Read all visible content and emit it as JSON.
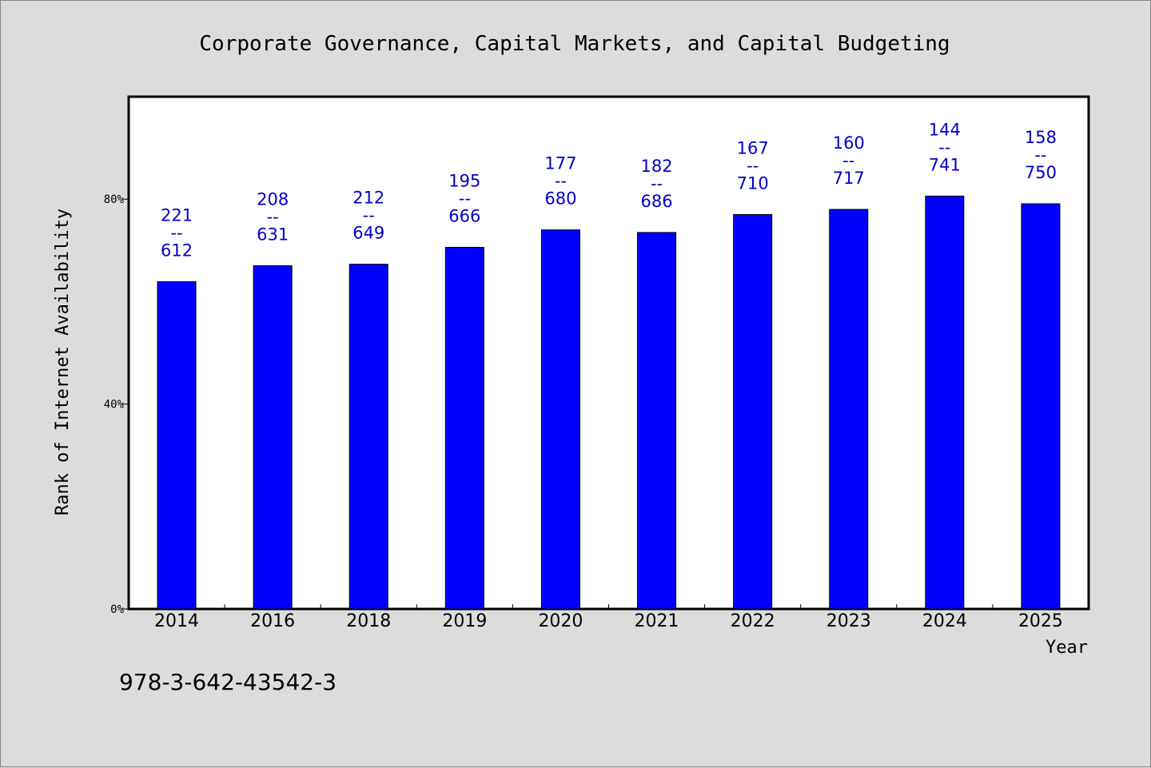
{
  "chart_data": {
    "type": "bar",
    "title": "Corporate Governance, Capital Markets, and Capital Budgeting",
    "xlabel": "Year",
    "ylabel": "Rank of Internet Availability",
    "categories": [
      "2014",
      "2016",
      "2018",
      "2019",
      "2020",
      "2021",
      "2022",
      "2023",
      "2024",
      "2025"
    ],
    "series": [
      {
        "values": [
          63.9,
          67.0,
          67.3,
          70.6,
          74.0,
          73.5,
          77.0,
          78.0,
          80.6,
          79.1
        ],
        "color": "#0000ff"
      }
    ],
    "data_labels": [
      [
        "221",
        "--",
        "612"
      ],
      [
        "208",
        "--",
        "631"
      ],
      [
        "212",
        "--",
        "649"
      ],
      [
        "195",
        "--",
        "666"
      ],
      [
        "177",
        "--",
        "680"
      ],
      [
        "182",
        "--",
        "686"
      ],
      [
        "167",
        "--",
        "710"
      ],
      [
        "160",
        "--",
        "717"
      ],
      [
        "144",
        "--",
        "741"
      ],
      [
        "158",
        "--",
        "750"
      ]
    ],
    "ylim": [
      0,
      100
    ],
    "yticks": [
      0,
      40,
      80
    ],
    "ytick_labels": [
      "0%",
      "40%",
      "80%"
    ],
    "grid": false,
    "legend": "none"
  },
  "footer": {
    "isbn": "978-3-642-43542-3"
  },
  "colors": {
    "background": "#dcdcdc",
    "plot_background": "#ffffff",
    "bar": "#0000ff",
    "data_label": "#0000cc"
  }
}
